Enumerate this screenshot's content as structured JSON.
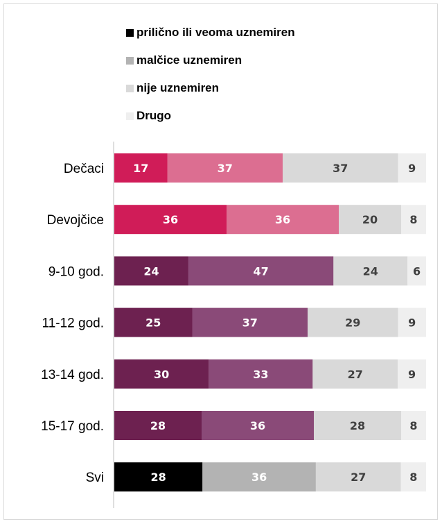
{
  "chart_data": {
    "type": "bar",
    "orientation": "horizontal",
    "stacked": true,
    "normalized": true,
    "legend_position": "top",
    "grid": false,
    "categories": [
      "Dečaci",
      "Devojčice",
      "9-10 god.",
      "11-12 god.",
      "13-14 god.",
      "15-17 god.",
      "Svi"
    ],
    "series": [
      {
        "name": "prilično ili veoma uznemiren",
        "values": [
          17,
          36,
          24,
          25,
          30,
          28,
          28
        ]
      },
      {
        "name": "malčice uznemiren",
        "values": [
          37,
          36,
          47,
          37,
          33,
          36,
          36
        ]
      },
      {
        "name": "nije uznemiren",
        "values": [
          37,
          20,
          24,
          29,
          27,
          28,
          27
        ]
      },
      {
        "name": "Drugo",
        "values": [
          9,
          8,
          6,
          9,
          9,
          8,
          8
        ]
      }
    ],
    "legend_colors": [
      "#000000",
      "#b3b3b3",
      "#d9d9d9",
      "#efefef"
    ],
    "row_colors": [
      [
        "#d01c58",
        "#dc6e91",
        "#d9d9d9",
        "#efefef"
      ],
      [
        "#d01c58",
        "#dc6e91",
        "#d9d9d9",
        "#efefef"
      ],
      [
        "#6d2150",
        "#8a4a78",
        "#d9d9d9",
        "#efefef"
      ],
      [
        "#6d2150",
        "#8a4a78",
        "#d9d9d9",
        "#efefef"
      ],
      [
        "#6d2150",
        "#8a4a78",
        "#d9d9d9",
        "#efefef"
      ],
      [
        "#6d2150",
        "#8a4a78",
        "#d9d9d9",
        "#efefef"
      ],
      [
        "#000000",
        "#b3b3b3",
        "#d9d9d9",
        "#efefef"
      ]
    ],
    "label_colors": [
      [
        "#ffffff",
        "#ffffff",
        "#404040",
        "#404040"
      ],
      [
        "#ffffff",
        "#ffffff",
        "#404040",
        "#404040"
      ],
      [
        "#ffffff",
        "#ffffff",
        "#404040",
        "#404040"
      ],
      [
        "#ffffff",
        "#ffffff",
        "#404040",
        "#404040"
      ],
      [
        "#ffffff",
        "#ffffff",
        "#404040",
        "#404040"
      ],
      [
        "#ffffff",
        "#ffffff",
        "#404040",
        "#404040"
      ],
      [
        "#ffffff",
        "#ffffff",
        "#404040",
        "#404040"
      ]
    ]
  }
}
